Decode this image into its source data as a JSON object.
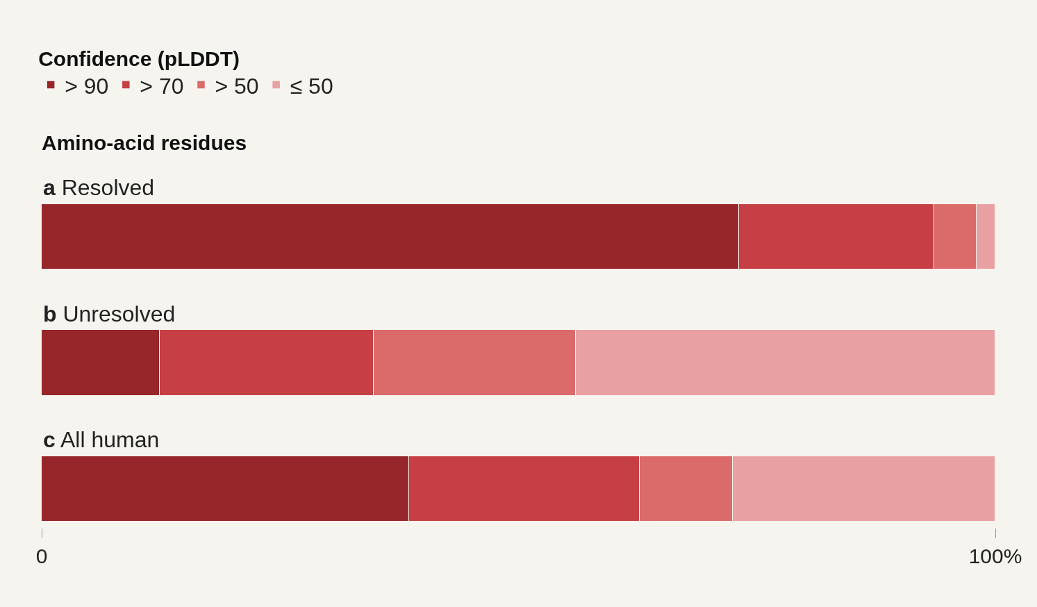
{
  "chart_data": {
    "type": "bar",
    "orientation": "horizontal",
    "stacked": true,
    "title": "Amino-acid residues",
    "legend_title": "Confidence (pLDDT)",
    "categories": [
      "a Resolved",
      "b Unresolved",
      "c All human"
    ],
    "series": [
      {
        "name": "> 90",
        "color": "#96262a",
        "values": [
          73.1,
          12.4,
          38.5
        ]
      },
      {
        "name": "> 70",
        "color": "#c63f45",
        "values": [
          20.5,
          22.4,
          24.2
        ]
      },
      {
        "name": "> 50",
        "color": "#db6a6a",
        "values": [
          4.4,
          21.2,
          9.8
        ]
      },
      {
        "name": "≤ 50",
        "color": "#e9a0a3",
        "values": [
          2.0,
          44.0,
          27.5
        ]
      }
    ],
    "xlim": [
      0,
      100
    ],
    "xticks": [
      0,
      {
        "value": 100,
        "label": "100%"
      }
    ],
    "legend": "top left"
  }
}
